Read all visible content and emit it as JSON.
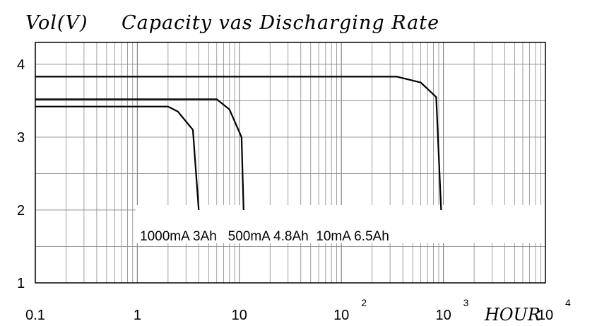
{
  "chart_data": {
    "type": "line",
    "title": "Capacity vas Discharging Rate",
    "ylabel": "Vol(V)",
    "xlabel": "HOUR",
    "x_scale": "log",
    "xlim": [
      0.1,
      10000
    ],
    "ylim": [
      1,
      4.3
    ],
    "grid": true,
    "x_ticks": [
      {
        "value": 0.1,
        "label": "0.1",
        "sup": ""
      },
      {
        "value": 1,
        "label": "1",
        "sup": ""
      },
      {
        "value": 10,
        "label": "10",
        "sup": ""
      },
      {
        "value": 100,
        "label": "10",
        "sup": "2"
      },
      {
        "value": 1000,
        "label": "10",
        "sup": "3"
      },
      {
        "value": 10000,
        "label": "10",
        "sup": "4"
      }
    ],
    "y_ticks": [
      {
        "value": 1,
        "label": "1"
      },
      {
        "value": 2,
        "label": "2"
      },
      {
        "value": 3,
        "label": "3"
      },
      {
        "value": 4,
        "label": "4"
      }
    ],
    "annotation": "1000mA 3Ah   500mA 4.8Ah  10mA 6.5Ah",
    "series": [
      {
        "x": [
          0.1,
          2.0,
          2.5,
          3.5,
          4.0
        ],
        "y": [
          3.42,
          3.42,
          3.35,
          3.1,
          2.0
        ]
      },
      {
        "x": [
          0.1,
          6.0,
          8.0,
          10.5,
          11.0
        ],
        "y": [
          3.52,
          3.52,
          3.38,
          3.0,
          2.0
        ]
      },
      {
        "x": [
          0.1,
          350,
          600,
          850,
          950
        ],
        "y": [
          3.83,
          3.83,
          3.75,
          3.55,
          2.0
        ]
      }
    ]
  }
}
